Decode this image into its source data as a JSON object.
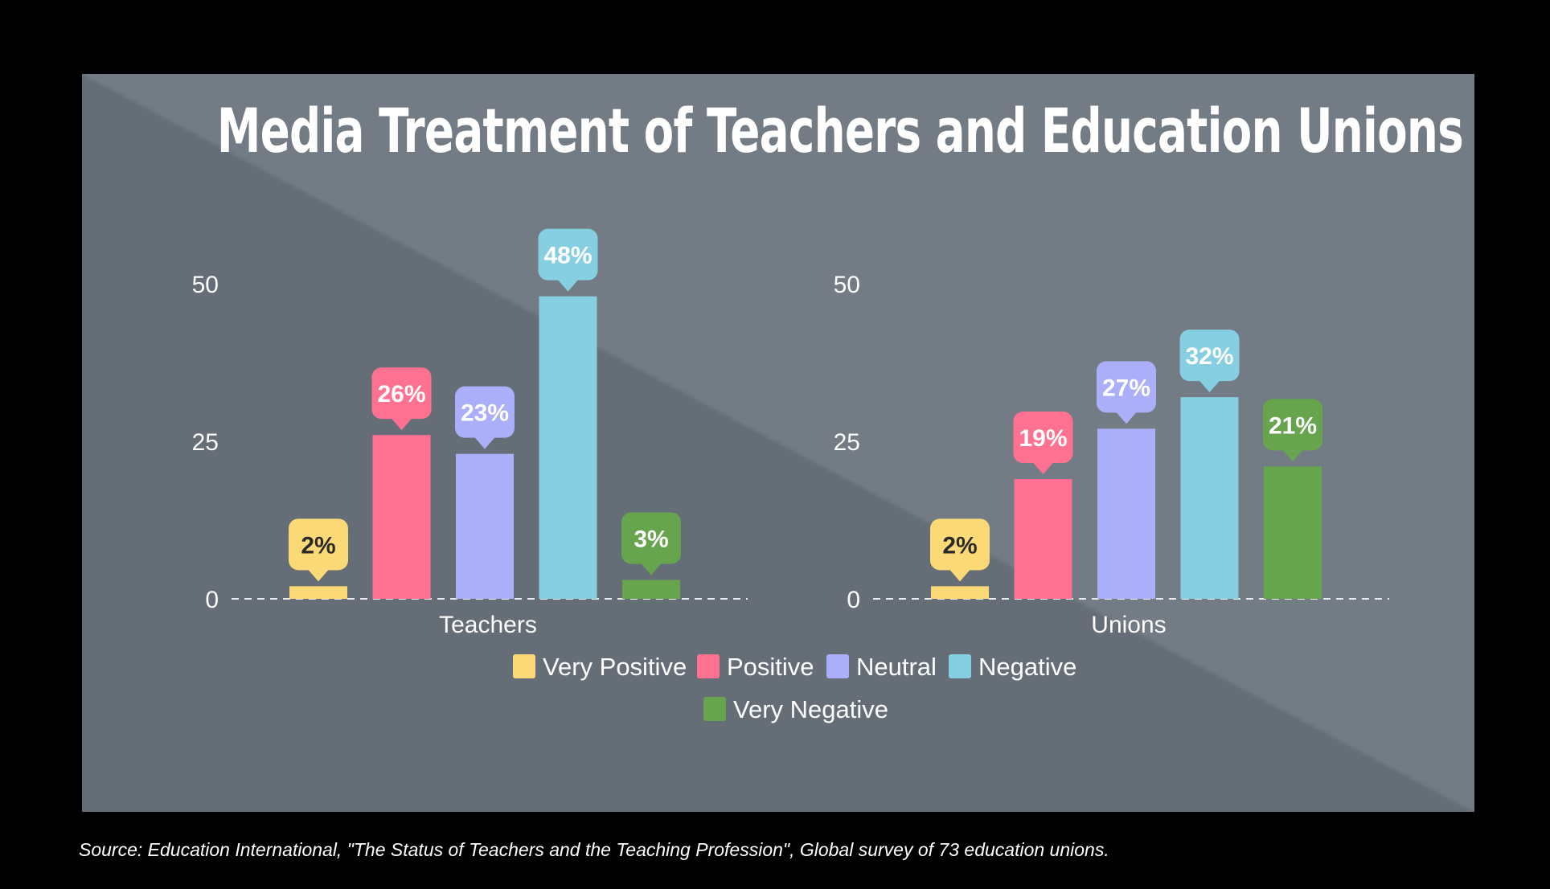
{
  "chart_data": {
    "type": "bar",
    "title": "Media Treatment of  Teachers and Education Unions",
    "ylim": [
      0,
      50
    ],
    "yticks": [
      0,
      25,
      50
    ],
    "grid": false,
    "legend_placement": "bottom-center",
    "categories": [
      "Teachers",
      "Unions"
    ],
    "series": [
      {
        "name": "Very Positive",
        "color": "#fcd977",
        "values": [
          2,
          2
        ],
        "labels": [
          "2%",
          "2%"
        ]
      },
      {
        "name": "Positive",
        "color": "#fe7191",
        "values": [
          26,
          19
        ],
        "labels": [
          "26%",
          "19%"
        ]
      },
      {
        "name": "Neutral",
        "color": "#abaef8",
        "values": [
          23,
          27
        ],
        "labels": [
          "23%",
          "27%"
        ]
      },
      {
        "name": "Negative",
        "color": "#86cfe2",
        "values": [
          48,
          32
        ],
        "labels": [
          "48%",
          "32%"
        ]
      },
      {
        "name": "Very Negative",
        "color": "#66a54e",
        "values": [
          3,
          21
        ],
        "labels": [
          "3%",
          "21%"
        ]
      }
    ]
  },
  "source": "Source: Education International, \"The Status of Teachers and the Teaching Profession\", Global survey of 73 education unions."
}
